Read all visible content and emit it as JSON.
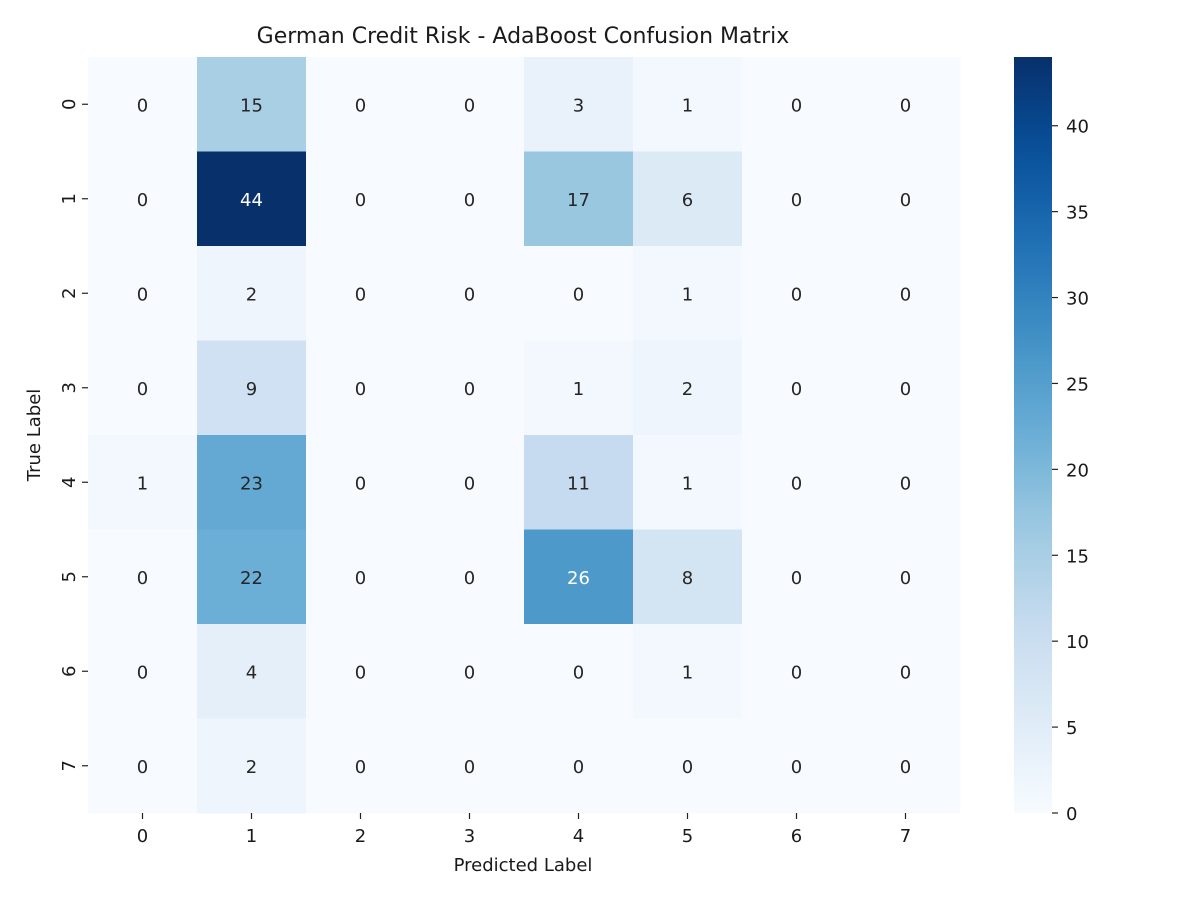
{
  "chart_data": {
    "type": "heatmap",
    "title": "German Credit Risk - AdaBoost Confusion Matrix",
    "xlabel": "Predicted Label",
    "ylabel": "True Label",
    "x_categories": [
      "0",
      "1",
      "2",
      "3",
      "4",
      "5",
      "6",
      "7"
    ],
    "y_categories": [
      "0",
      "1",
      "2",
      "3",
      "4",
      "5",
      "6",
      "7"
    ],
    "matrix": [
      [
        0,
        15,
        0,
        0,
        3,
        1,
        0,
        0
      ],
      [
        0,
        44,
        0,
        0,
        17,
        6,
        0,
        0
      ],
      [
        0,
        2,
        0,
        0,
        0,
        1,
        0,
        0
      ],
      [
        0,
        9,
        0,
        0,
        1,
        2,
        0,
        0
      ],
      [
        1,
        23,
        0,
        0,
        11,
        1,
        0,
        0
      ],
      [
        0,
        22,
        0,
        0,
        26,
        8,
        0,
        0
      ],
      [
        0,
        4,
        0,
        0,
        0,
        1,
        0,
        0
      ],
      [
        0,
        2,
        0,
        0,
        0,
        0,
        0,
        0
      ]
    ],
    "colorscale": "Blues",
    "color_low": "#f7fbff",
    "color_high": "#08306b",
    "vmin": 0,
    "vmax": 44,
    "colorbar_ticks": [
      "0",
      "5",
      "10",
      "15",
      "20",
      "25",
      "30",
      "35",
      "40"
    ],
    "legend": "colorbar right"
  }
}
